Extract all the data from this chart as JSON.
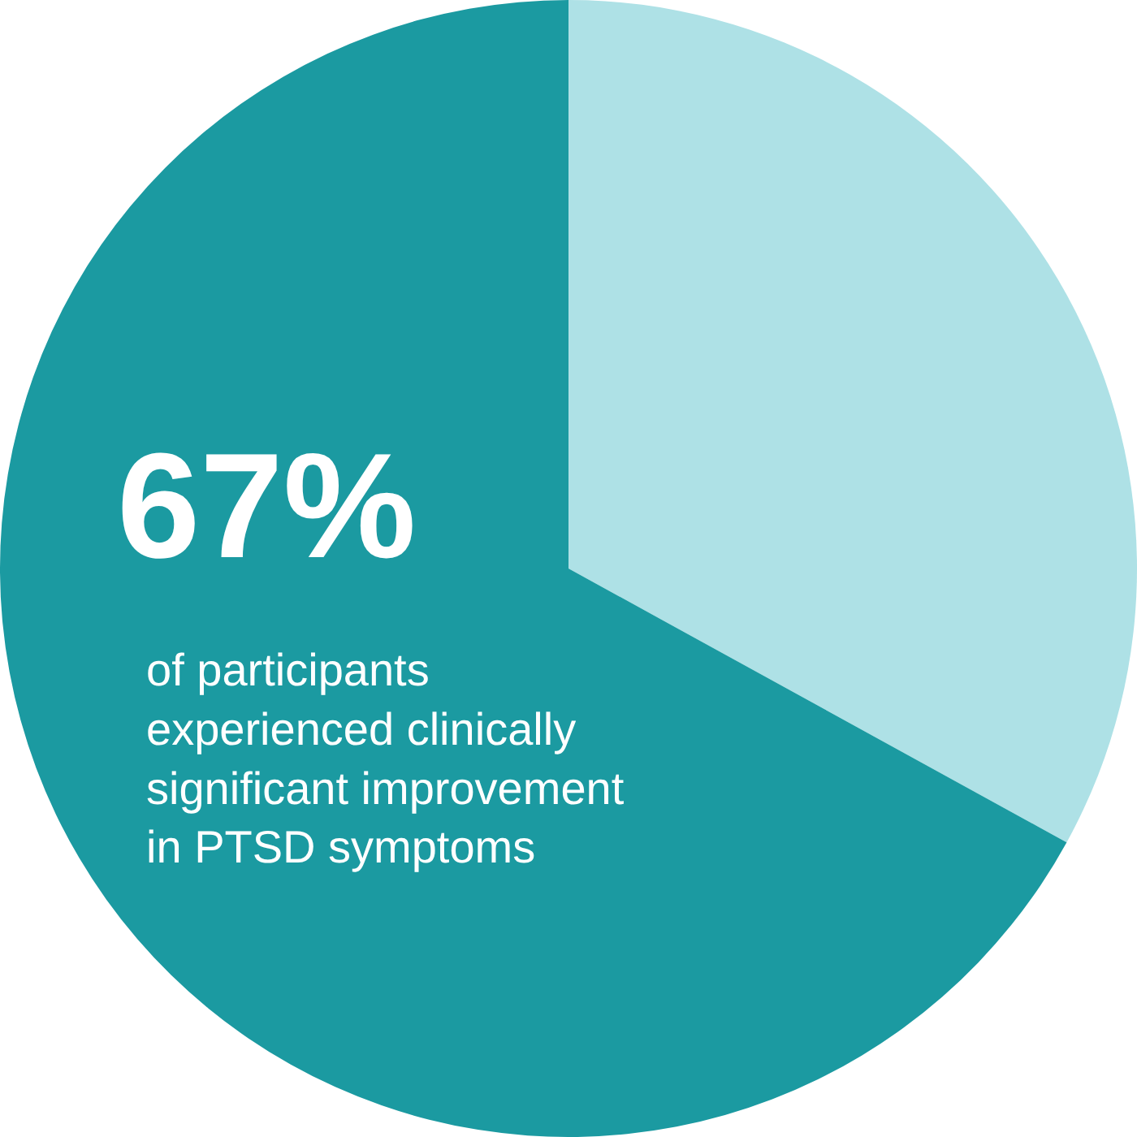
{
  "chart_data": {
    "type": "pie",
    "categories": [
      null,
      null
    ],
    "values": [
      33,
      67
    ],
    "colors": [
      "#aee1e6",
      "#1b9aa1"
    ],
    "value_labels": [
      null,
      "67%"
    ],
    "annotations": [
      "of participants\nexperienced clinically\nsignificant improvement\nin PTSD symptoms"
    ],
    "legend": false
  }
}
